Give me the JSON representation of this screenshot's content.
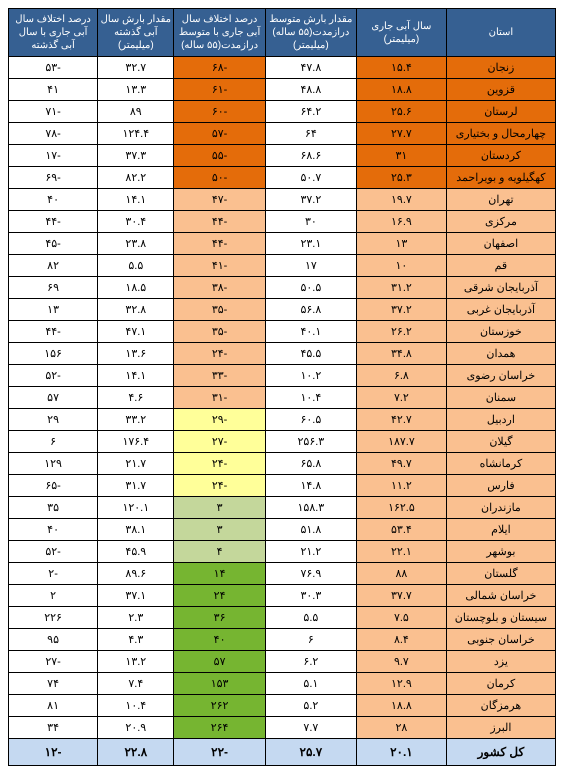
{
  "header": {
    "province": "استان",
    "current_year": "سال آبی جاری (میلیمتر)",
    "long_avg": "مقدار بارش متوسط درازمدت(۵۵ ساله) (میلیمتر)",
    "diff_long": "درصد اختلاف سال آبی جاری با متوسط درازمدت(۵۵ ساله)",
    "last_year": "مقدار بارش سال آبی گذشته (میلیمتر)",
    "diff_last": "درصد اختلاف سال آبی جاری با سال آبی گذشته"
  },
  "colors": {
    "dark_orange": "#e46c0a",
    "light_orange": "#fac090",
    "yellow": "#ffff99",
    "light_green": "#c4d79b",
    "green": "#76b531"
  },
  "rows": [
    {
      "province": "زنجان",
      "current": "۱۵.۴",
      "long": "۴۷.۸",
      "diff_long": "-۶۸",
      "last": "۳۲.۷",
      "diff_last": "-۵۳",
      "cell_bg": "dark_orange",
      "diff_bg": "dark_orange"
    },
    {
      "province": "قزوین",
      "current": "۱۸.۸",
      "long": "۴۸.۸",
      "diff_long": "-۶۱",
      "last": "۱۳.۳",
      "diff_last": "۴۱",
      "cell_bg": "dark_orange",
      "diff_bg": "dark_orange"
    },
    {
      "province": "لرستان",
      "current": "۲۵.۶",
      "long": "۶۴.۲",
      "diff_long": "-۶۰",
      "last": "۸۹",
      "diff_last": "-۷۱",
      "cell_bg": "dark_orange",
      "diff_bg": "dark_orange"
    },
    {
      "province": "چهارمحال و بختیاری",
      "current": "۲۷.۷",
      "long": "۶۴",
      "diff_long": "-۵۷",
      "last": "۱۲۴.۴",
      "diff_last": "-۷۸",
      "cell_bg": "dark_orange",
      "diff_bg": "dark_orange"
    },
    {
      "province": "کردستان",
      "current": "۳۱",
      "long": "۶۸.۶",
      "diff_long": "-۵۵",
      "last": "۳۷.۳",
      "diff_last": "-۱۷",
      "cell_bg": "dark_orange",
      "diff_bg": "dark_orange"
    },
    {
      "province": "کهگیلویه و بویراحمد",
      "current": "۲۵.۳",
      "long": "۵۰.۷",
      "diff_long": "-۵۰",
      "last": "۸۲.۲",
      "diff_last": "-۶۹",
      "cell_bg": "dark_orange",
      "diff_bg": "dark_orange"
    },
    {
      "province": "تهران",
      "current": "۱۹.۷",
      "long": "۳۷.۲",
      "diff_long": "-۴۷",
      "last": "۱۴.۱",
      "diff_last": "۴۰",
      "cell_bg": "light_orange",
      "diff_bg": "light_orange"
    },
    {
      "province": "مرکزی",
      "current": "۱۶.۹",
      "long": "۳۰",
      "diff_long": "-۴۴",
      "last": "۳۰.۴",
      "diff_last": "-۴۴",
      "cell_bg": "light_orange",
      "diff_bg": "light_orange"
    },
    {
      "province": "اصفهان",
      "current": "۱۳",
      "long": "۲۳.۱",
      "diff_long": "-۴۴",
      "last": "۲۳.۸",
      "diff_last": "-۴۵",
      "cell_bg": "light_orange",
      "diff_bg": "light_orange"
    },
    {
      "province": "قم",
      "current": "۱۰",
      "long": "۱۷",
      "diff_long": "-۴۱",
      "last": "۵.۵",
      "diff_last": "۸۲",
      "cell_bg": "light_orange",
      "diff_bg": "light_orange"
    },
    {
      "province": "آذربایجان شرقی",
      "current": "۳۱.۲",
      "long": "۵۰.۵",
      "diff_long": "-۳۸",
      "last": "۱۸.۵",
      "diff_last": "۶۹",
      "cell_bg": "light_orange",
      "diff_bg": "light_orange"
    },
    {
      "province": "آذربایجان غربی",
      "current": "۳۷.۲",
      "long": "۵۶.۸",
      "diff_long": "-۳۵",
      "last": "۳۲.۸",
      "diff_last": "۱۳",
      "cell_bg": "light_orange",
      "diff_bg": "light_orange"
    },
    {
      "province": "خوزستان",
      "current": "۲۶.۲",
      "long": "۴۰.۱",
      "diff_long": "-۳۵",
      "last": "۴۷.۱",
      "diff_last": "-۴۴",
      "cell_bg": "light_orange",
      "diff_bg": "light_orange"
    },
    {
      "province": "همدان",
      "current": "۳۴.۸",
      "long": "۴۵.۵",
      "diff_long": "-۲۴",
      "last": "۱۳.۶",
      "diff_last": "۱۵۶",
      "cell_bg": "light_orange",
      "diff_bg": "light_orange"
    },
    {
      "province": "خراسان رضوی",
      "current": "۶.۸",
      "long": "۱۰.۲",
      "diff_long": "-۳۳",
      "last": "۱۴.۱",
      "diff_last": "-۵۲",
      "cell_bg": "light_orange",
      "diff_bg": "light_orange"
    },
    {
      "province": "سمنان",
      "current": "۷.۲",
      "long": "۱۰.۴",
      "diff_long": "-۳۱",
      "last": "۴.۶",
      "diff_last": "۵۷",
      "cell_bg": "light_orange",
      "diff_bg": "light_orange"
    },
    {
      "province": "اردبیل",
      "current": "۴۲.۷",
      "long": "۶۰.۵",
      "diff_long": "-۲۹",
      "last": "۳۳.۲",
      "diff_last": "۲۹",
      "cell_bg": "light_orange",
      "diff_bg": "yellow"
    },
    {
      "province": "گیلان",
      "current": "۱۸۷.۷",
      "long": "۲۵۶.۳",
      "diff_long": "-۲۷",
      "last": "۱۷۶.۴",
      "diff_last": "۶",
      "cell_bg": "light_orange",
      "diff_bg": "yellow"
    },
    {
      "province": "کرمانشاه",
      "current": "۴۹.۷",
      "long": "۶۵.۸",
      "diff_long": "-۲۴",
      "last": "۲۱.۷",
      "diff_last": "۱۲۹",
      "cell_bg": "light_orange",
      "diff_bg": "yellow"
    },
    {
      "province": "فارس",
      "current": "۱۱.۲",
      "long": "۱۴.۸",
      "diff_long": "-۲۴",
      "last": "۳۱.۷",
      "diff_last": "-۶۵",
      "cell_bg": "light_orange",
      "diff_bg": "yellow"
    },
    {
      "province": "مازندران",
      "current": "۱۶۲.۵",
      "long": "۱۵۸.۳",
      "diff_long": "۳",
      "last": "۱۲۰.۱",
      "diff_last": "۳۵",
      "cell_bg": "light_orange",
      "diff_bg": "light_green"
    },
    {
      "province": "ایلام",
      "current": "۵۳.۴",
      "long": "۵۱.۸",
      "diff_long": "۳",
      "last": "۳۸.۱",
      "diff_last": "۴۰",
      "cell_bg": "light_orange",
      "diff_bg": "light_green"
    },
    {
      "province": "بوشهر",
      "current": "۲۲.۱",
      "long": "۲۱.۲",
      "diff_long": "۴",
      "last": "۴۵.۹",
      "diff_last": "-۵۲",
      "cell_bg": "light_orange",
      "diff_bg": "light_green"
    },
    {
      "province": "گلستان",
      "current": "۸۸",
      "long": "۷۶.۹",
      "diff_long": "۱۴",
      "last": "۸۹.۶",
      "diff_last": "-۲",
      "cell_bg": "light_orange",
      "diff_bg": "green"
    },
    {
      "province": "خراسان شمالی",
      "current": "۳۷.۷",
      "long": "۳۰.۳",
      "diff_long": "۲۴",
      "last": "۳۷.۱",
      "diff_last": "۲",
      "cell_bg": "light_orange",
      "diff_bg": "green"
    },
    {
      "province": "سیستان و بلوچستان",
      "current": "۷.۵",
      "long": "۵.۵",
      "diff_long": "۳۶",
      "last": "۲.۳",
      "diff_last": "۲۲۶",
      "cell_bg": "light_orange",
      "diff_bg": "green"
    },
    {
      "province": "خراسان جنوبی",
      "current": "۸.۴",
      "long": "۶",
      "diff_long": "۴۰",
      "last": "۴.۳",
      "diff_last": "۹۵",
      "cell_bg": "light_orange",
      "diff_bg": "green"
    },
    {
      "province": "یزد",
      "current": "۹.۷",
      "long": "۶.۲",
      "diff_long": "۵۷",
      "last": "۱۳.۲",
      "diff_last": "-۲۷",
      "cell_bg": "light_orange",
      "diff_bg": "green"
    },
    {
      "province": "کرمان",
      "current": "۱۲.۹",
      "long": "۵.۱",
      "diff_long": "۱۵۳",
      "last": "۷.۴",
      "diff_last": "۷۴",
      "cell_bg": "light_orange",
      "diff_bg": "green"
    },
    {
      "province": "هرمزگان",
      "current": "۱۸.۸",
      "long": "۵.۲",
      "diff_long": "۲۶۲",
      "last": "۱۰.۴",
      "diff_last": "۸۱",
      "cell_bg": "light_orange",
      "diff_bg": "green"
    },
    {
      "province": "البرز",
      "current": "۲۸",
      "long": "۷.۷",
      "diff_long": "۲۶۴",
      "last": "۲۰.۹",
      "diff_last": "۳۴",
      "cell_bg": "light_orange",
      "diff_bg": "green"
    }
  ],
  "footer": {
    "province": "کل کشور",
    "current": "۲۰.۱",
    "long": "۲۵.۷",
    "diff_long": "-۲۲",
    "last": "۲۲.۸",
    "diff_last": "-۱۲"
  }
}
